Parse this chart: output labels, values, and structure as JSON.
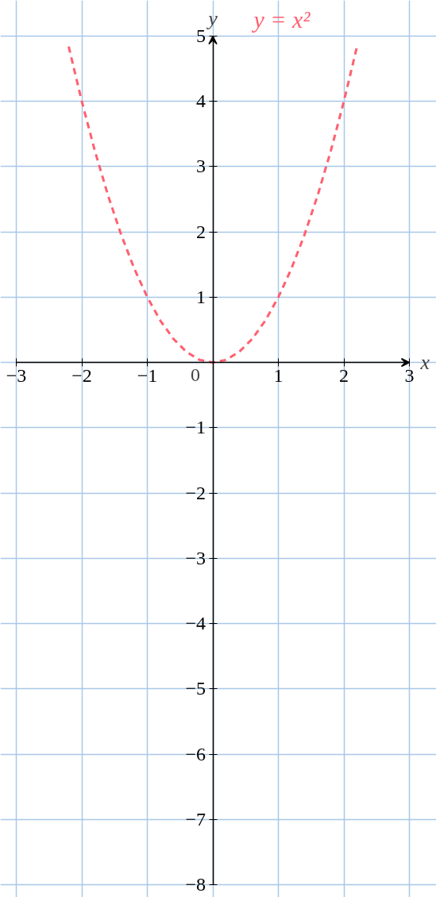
{
  "chart_data": {
    "type": "line",
    "xlabel": "x",
    "ylabel": "y",
    "xlim": [
      -3,
      3
    ],
    "ylim": [
      -8,
      5
    ],
    "xticks": [
      -3,
      -2,
      -1,
      {
        "value": 0,
        "label": null
      },
      1,
      2,
      3
    ],
    "yticks": [
      -8,
      -7,
      -6,
      -5,
      -4,
      -3,
      -2,
      -1,
      {
        "value": 0,
        "label": null
      },
      1,
      2,
      3,
      4,
      5
    ],
    "grid": true,
    "line_style": "dashed",
    "marker": "none",
    "legend": false,
    "annotations": [
      {
        "text": "0",
        "x": 0,
        "y": 0
      }
    ],
    "series": [
      {
        "name": "y = x²",
        "color": "#ff6070",
        "x": [
          -2.2,
          -2.0,
          -1.8,
          -1.6,
          -1.4,
          -1.2,
          -1.0,
          -0.8,
          -0.6,
          -0.4,
          -0.2,
          0,
          0.2,
          0.4,
          0.6,
          0.8,
          1.0,
          1.2,
          1.4,
          1.6,
          1.8,
          2.0,
          2.2
        ],
        "values": [
          4.84,
          4,
          3.24,
          2.56,
          1.96,
          1.44,
          1,
          0.64,
          0.36,
          0.16,
          0.04,
          0,
          0.04,
          0.16,
          0.36,
          0.64,
          1,
          1.44,
          1.96,
          2.56,
          3.24,
          4,
          4.84
        ]
      }
    ]
  }
}
